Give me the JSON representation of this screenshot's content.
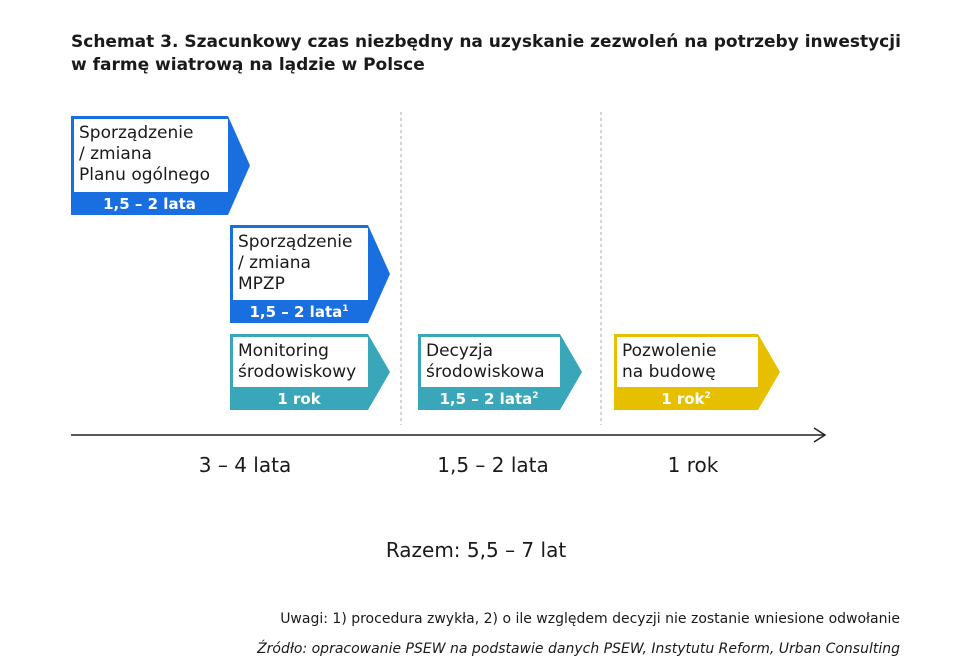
{
  "title": [
    "Schemat 3. Szacunkowy czas niezbędny na uzyskanie zezwoleń na potrzeby inwestycji",
    "w farmę wiatrową na lądzie w Polsce"
  ],
  "boxes": [
    {
      "label": [
        "Sporządzenie",
        " / zmiana",
        "Planu ogólnego"
      ],
      "duration": "1,5 – 2 lata",
      "color": "#1a6fe0"
    },
    {
      "label": [
        "Sporządzenie",
        " / zmiana",
        "MPZP"
      ],
      "duration": "1,5 – 2 lata",
      "note": "1",
      "color": "#1a6fe0"
    },
    {
      "label": [
        "Monitoring",
        "środowiskowy"
      ],
      "duration": "1 rok",
      "color": "#3aa6b9"
    },
    {
      "label": [
        "Decyzja",
        "środowiskowa"
      ],
      "duration": "1,5 – 2 lata",
      "note": "2",
      "color": "#3aa6b9"
    },
    {
      "label": [
        "Pozwolenie",
        "na budowę"
      ],
      "duration": "1 rok",
      "note": "2",
      "color": "#e6c000"
    }
  ],
  "periods": [
    "3 – 4 lata",
    "1,5 – 2 lata",
    "1 rok"
  ],
  "total": "Razem: 5,5 – 7 lat",
  "notes": "Uwagi: 1) procedura zwykła, 2) o ile względem decyzji nie zostanie wniesione odwołanie",
  "source": "Źródło: opracowanie PSEW na podstawie danych PSEW, Instytutu Reform, Urban Consulting"
}
